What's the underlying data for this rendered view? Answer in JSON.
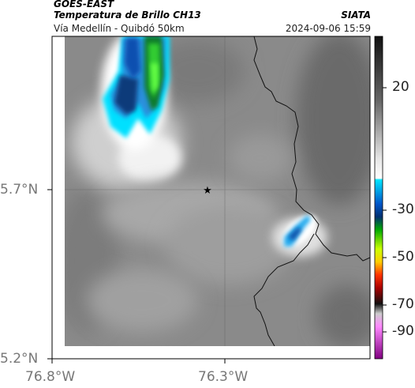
{
  "header": {
    "satellite": "GOES-EAST",
    "product": "Temperatura de Brillo CH13",
    "route": "Vía Medellín - Quibdó 50km",
    "agency": "SIATA",
    "datetime": "2024-09-06 15:59"
  },
  "axes": {
    "lat_labels": [
      "5.7°N",
      "5.2°N"
    ],
    "lon_labels": [
      "76.8°W",
      "76.3°W"
    ]
  },
  "colorbar": {
    "tick_labels": [
      "20",
      "-30",
      "-50",
      "-70",
      "-90"
    ],
    "colors": [
      "#000000",
      "#ffffff",
      "#00bfff",
      "#0040a0",
      "#00c000",
      "#ffff00",
      "#ff0000",
      "#000000",
      "#ff80ff",
      "#800080"
    ]
  },
  "map": {
    "marker": "star-icon",
    "gridlines": true
  }
}
